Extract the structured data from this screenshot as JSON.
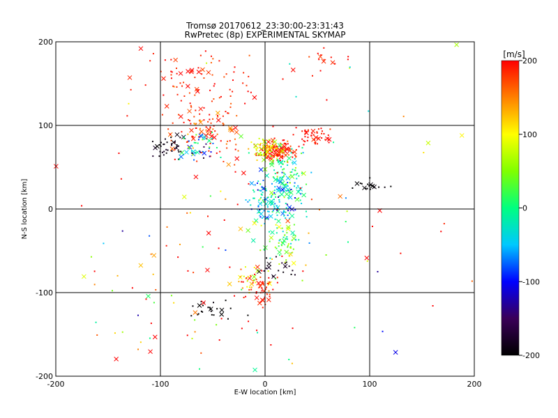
{
  "chart_data": {
    "type": "scatter",
    "title": "Tromsø 20170612_23:30:00-23:31:43",
    "subtitle": "RwPretec (8p) EXPERIMENTAL SKYMAP",
    "xlabel": "E-W location [km]",
    "ylabel": "N-S location [km]",
    "xlim": [
      -200,
      200
    ],
    "ylim": [
      -200,
      200
    ],
    "xticks": [
      "-200",
      "-100",
      "0",
      "100",
      "200"
    ],
    "yticks": [
      "-200",
      "-100",
      "0",
      "100",
      "200"
    ],
    "gridlines": [
      -100,
      0,
      100
    ],
    "grid": true,
    "markers": {
      "small": "dot",
      "large": "x"
    },
    "colorbar": {
      "label": "[m/s]",
      "range": [
        -200,
        200
      ],
      "ticks": [
        "200",
        "100",
        "0",
        "-100",
        "-200"
      ],
      "colormap": [
        "#000000",
        "#3a0058",
        "#0000ff",
        "#00c8ff",
        "#00ff80",
        "#80ff00",
        "#ffff00",
        "#ff8000",
        "#ff0000"
      ]
    },
    "clusters": [
      {
        "x": 10,
        "y": 70,
        "sx": 10,
        "sy": 6,
        "n": 130,
        "v": 185,
        "vs": 25
      },
      {
        "x": 0,
        "y": 72,
        "sx": 7,
        "sy": 6,
        "n": 60,
        "v": 90,
        "vs": 30
      },
      {
        "x": 20,
        "y": 35,
        "sx": 10,
        "sy": 18,
        "n": 110,
        "v": -5,
        "vs": 40
      },
      {
        "x": 5,
        "y": 10,
        "sx": 12,
        "sy": 15,
        "n": 120,
        "v": -45,
        "vs": 40
      },
      {
        "x": 20,
        "y": -40,
        "sx": 8,
        "sy": 12,
        "n": 60,
        "v": 30,
        "vs": 40
      },
      {
        "x": -55,
        "y": 90,
        "sx": 18,
        "sy": 18,
        "n": 110,
        "v": 185,
        "vs": 25
      },
      {
        "x": -60,
        "y": 75,
        "sx": 10,
        "sy": 8,
        "n": 45,
        "v": -40,
        "vs": 60
      },
      {
        "x": -90,
        "y": 75,
        "sx": 10,
        "sy": 8,
        "n": 40,
        "v": -190,
        "vs": 10
      },
      {
        "x": -65,
        "y": 150,
        "sx": 30,
        "sy": 22,
        "n": 80,
        "v": 190,
        "vs": 15
      },
      {
        "x": 45,
        "y": 88,
        "sx": 10,
        "sy": 5,
        "n": 45,
        "v": 195,
        "vs": 10
      },
      {
        "x": 60,
        "y": 180,
        "sx": 10,
        "sy": 8,
        "n": 15,
        "v": 195,
        "vs": 10
      },
      {
        "x": -15,
        "y": -85,
        "sx": 12,
        "sy": 10,
        "n": 50,
        "v": 150,
        "vs": 60
      },
      {
        "x": 0,
        "y": -100,
        "sx": 6,
        "sy": 8,
        "n": 30,
        "v": 195,
        "vs": 10
      },
      {
        "x": 10,
        "y": -70,
        "sx": 10,
        "sy": 6,
        "n": 20,
        "v": -190,
        "vs": 10
      },
      {
        "x": -50,
        "y": -120,
        "sx": 12,
        "sy": 5,
        "n": 25,
        "v": -200,
        "vs": 5
      },
      {
        "x": 100,
        "y": 28,
        "sx": 10,
        "sy": 4,
        "n": 18,
        "v": -200,
        "vs": 5
      },
      {
        "x": -90,
        "y": -110,
        "sx": 40,
        "sy": 40,
        "n": 40,
        "v": 150,
        "vs": 100
      },
      {
        "x": 0,
        "y": 0,
        "sx": 90,
        "sy": 90,
        "n": 120,
        "v": 120,
        "vs": 120
      }
    ]
  }
}
